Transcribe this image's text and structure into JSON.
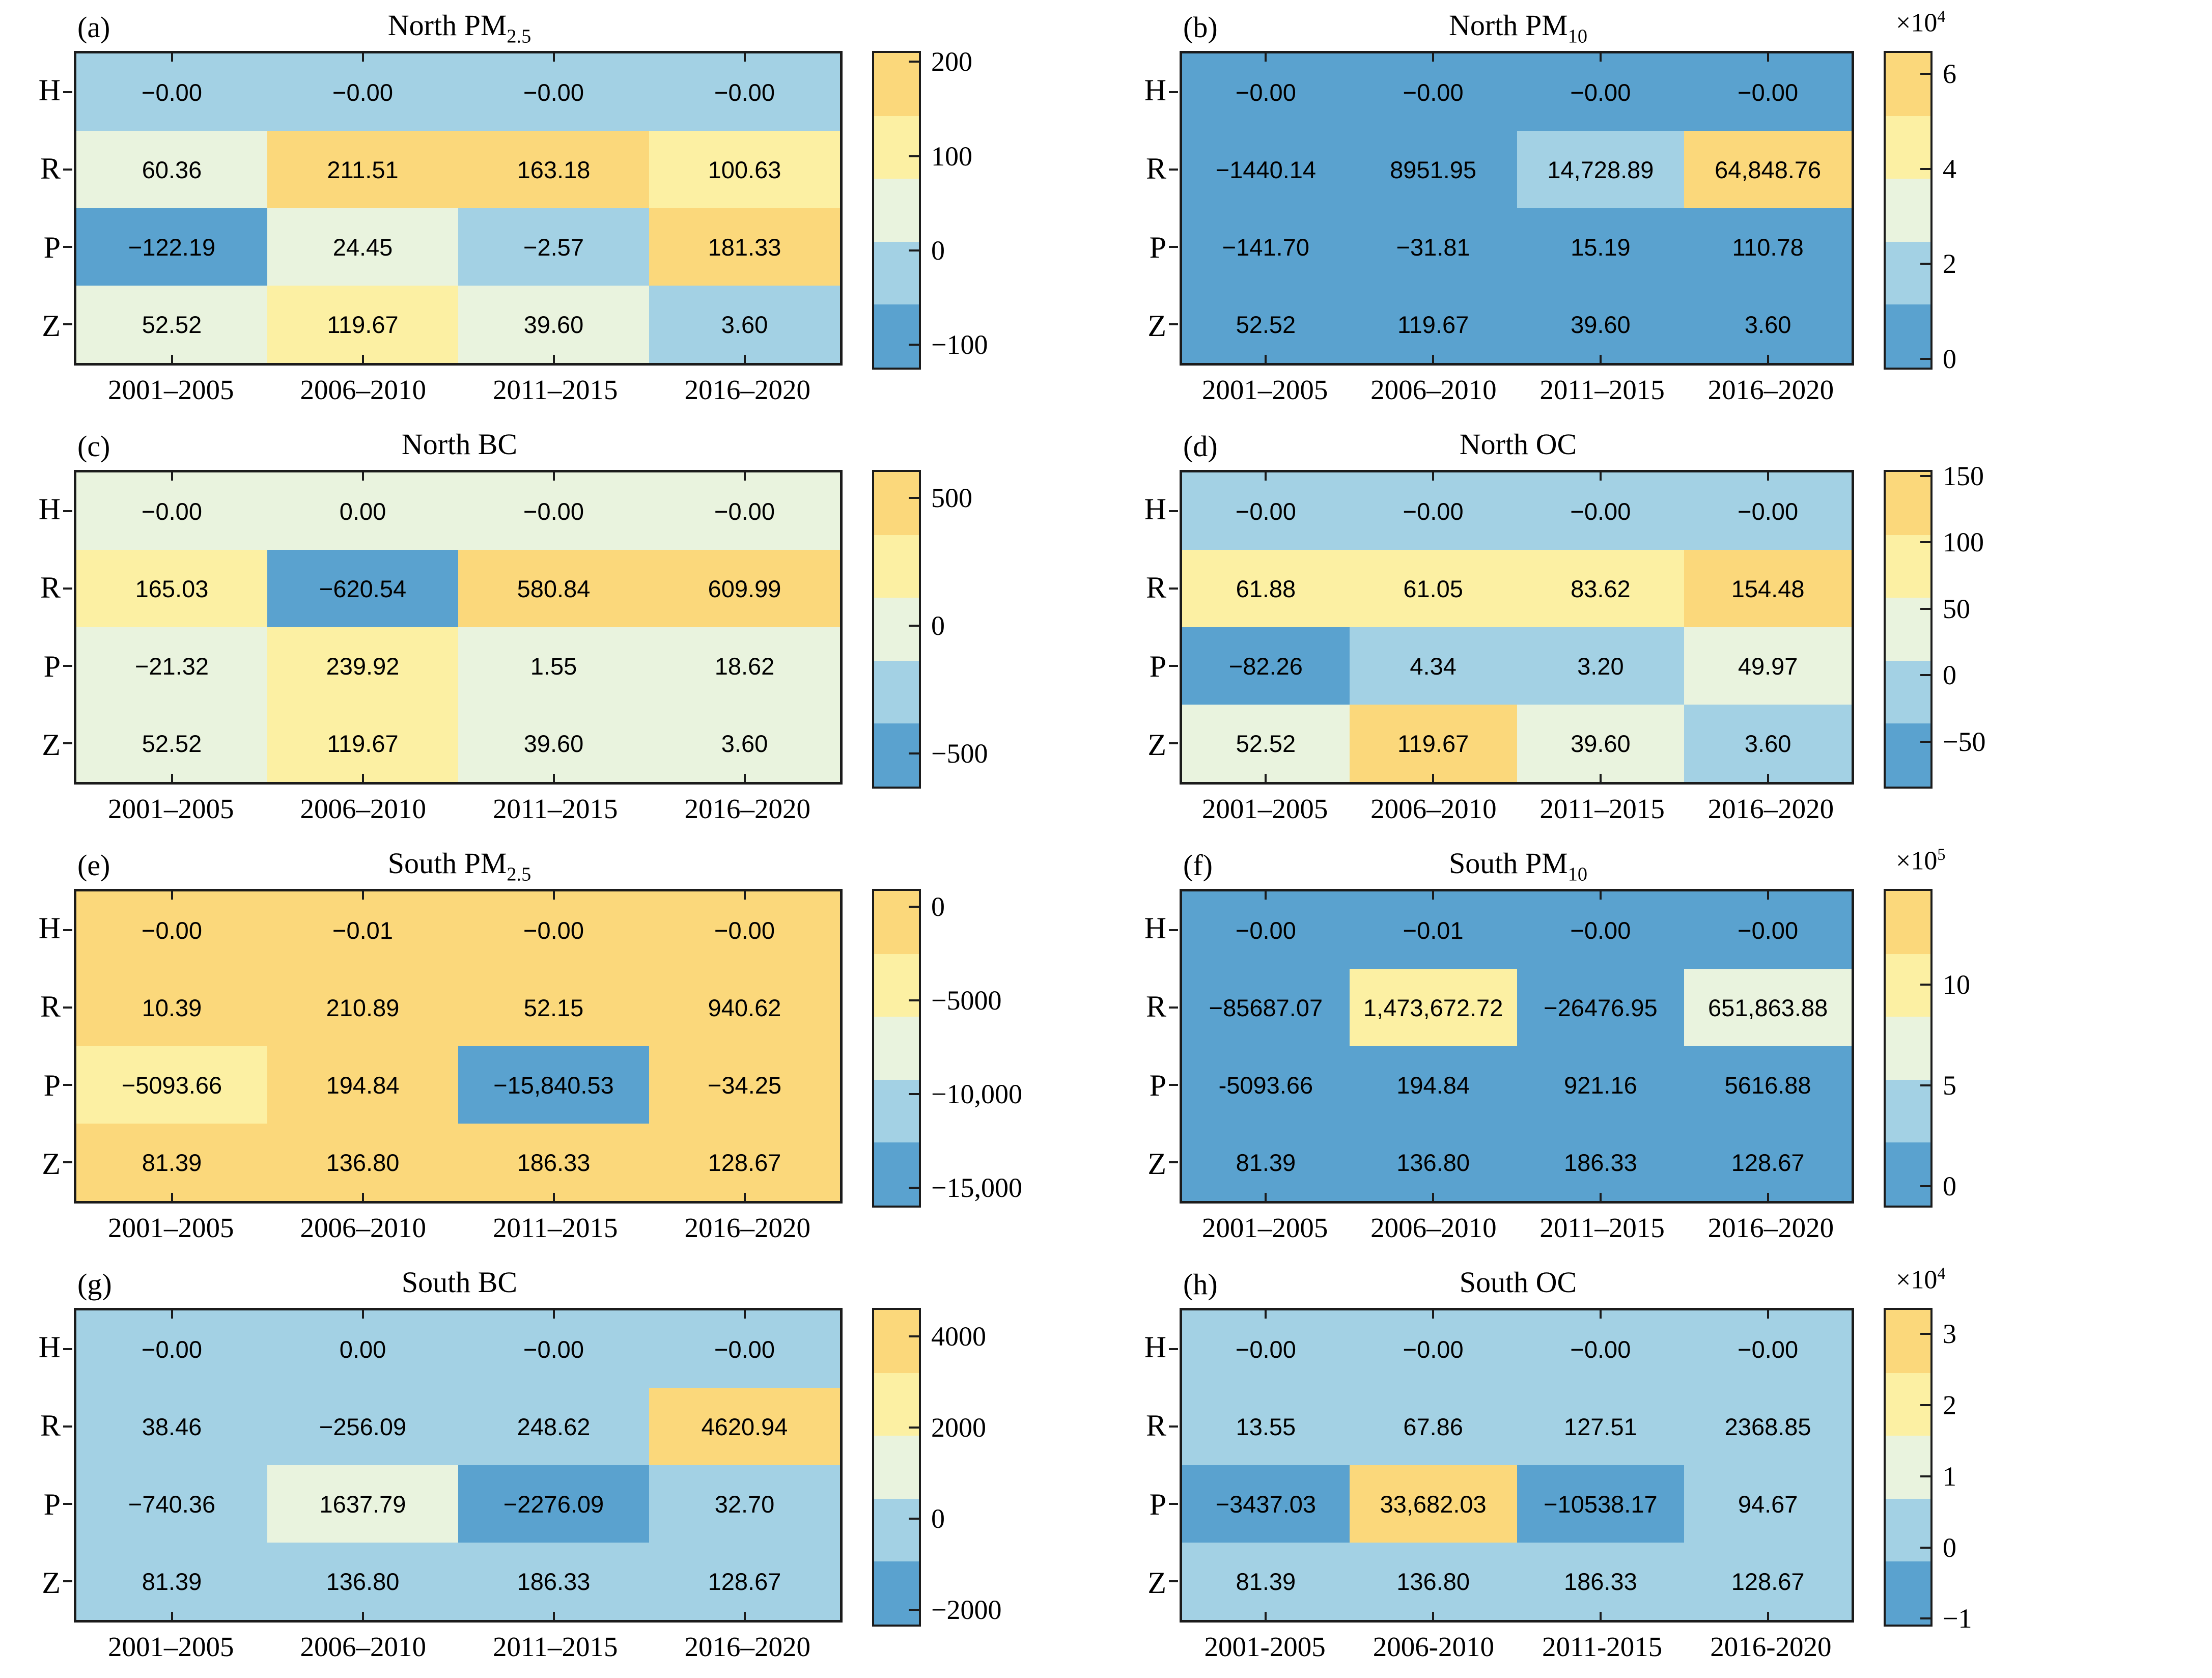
{
  "chart_data": {
    "type": "heatmap",
    "layout": "2x4 panel grid, each panel a 4x4 annotated heatmap with discrete 5-color colorbar",
    "rows": [
      "H",
      "R",
      "P",
      "Z"
    ],
    "palette": [
      "#5aa2cf",
      "#a3d1e4",
      "#e9f3de",
      "#fcf0a3",
      "#fbd87b"
    ],
    "border_color": "#1b1b1b",
    "text_color": "#000000",
    "panels": [
      {
        "id": "a",
        "tag": "(a)",
        "title": "North PM",
        "title_sub": "2.5",
        "columns": [
          "2001–2005",
          "2006–2010",
          "2011–2015",
          "2016–2020"
        ],
        "values": [
          [
            "−0.00",
            "−0.00",
            "−0.00",
            "−0.00"
          ],
          [
            "60.36",
            "211.51",
            "163.18",
            "100.63"
          ],
          [
            "−122.19",
            "24.45",
            "−2.57",
            "181.33"
          ],
          [
            "52.52",
            "119.67",
            "39.60",
            "3.60"
          ]
        ],
        "values_num": [
          [
            -0.0,
            -0.0,
            -0.0,
            -0.0
          ],
          [
            60.36,
            211.51,
            163.18,
            100.63
          ],
          [
            -122.19,
            24.45,
            -2.57,
            181.33
          ],
          [
            52.52,
            119.67,
            39.6,
            3.6
          ]
        ],
        "bands": [
          [
            1,
            1,
            1,
            1
          ],
          [
            2,
            4,
            4,
            3
          ],
          [
            0,
            2,
            1,
            4
          ],
          [
            2,
            3,
            2,
            1
          ]
        ],
        "caxis": {
          "min": -122.19,
          "max": 211.51
        },
        "colorbar": {
          "exp_base": "",
          "exp_sup": "",
          "ticks": [
            {
              "label": "200",
              "value": 200
            },
            {
              "label": "100",
              "value": 100
            },
            {
              "label": "0",
              "value": 0
            },
            {
              "label": "−100",
              "value": -100
            }
          ]
        }
      },
      {
        "id": "b",
        "tag": "(b)",
        "title": "North PM",
        "title_sub": "10",
        "columns": [
          "2001–2005",
          "2006–2010",
          "2011–2015",
          "2016–2020"
        ],
        "values": [
          [
            "−0.00",
            "−0.00",
            "−0.00",
            "−0.00"
          ],
          [
            "−1440.14",
            "8951.95",
            "14,728.89",
            "64,848.76"
          ],
          [
            "−141.70",
            "−31.81",
            "15.19",
            "110.78"
          ],
          [
            "52.52",
            "119.67",
            "39.60",
            "3.60"
          ]
        ],
        "values_num": [
          [
            -0.0,
            -0.0,
            -0.0,
            -0.0
          ],
          [
            -1440.14,
            8951.95,
            14728.89,
            64848.76
          ],
          [
            -141.7,
            -31.81,
            15.19,
            110.78
          ],
          [
            52.52,
            119.67,
            39.6,
            3.6
          ]
        ],
        "bands": [
          [
            0,
            0,
            0,
            0
          ],
          [
            0,
            0,
            1,
            4
          ],
          [
            0,
            0,
            0,
            0
          ],
          [
            0,
            0,
            0,
            0
          ]
        ],
        "caxis": {
          "min": -1440.14,
          "max": 64848.76
        },
        "colorbar": {
          "exp_base": "×10",
          "exp_sup": "4",
          "ticks": [
            {
              "label": "6",
              "value": 60000
            },
            {
              "label": "4",
              "value": 40000
            },
            {
              "label": "2",
              "value": 20000
            },
            {
              "label": "0",
              "value": 0
            }
          ]
        }
      },
      {
        "id": "c",
        "tag": "(c)",
        "title": "North BC",
        "title_sub": "",
        "columns": [
          "2001–2005",
          "2006–2010",
          "2011–2015",
          "2016–2020"
        ],
        "values": [
          [
            "−0.00",
            "0.00",
            "−0.00",
            "−0.00"
          ],
          [
            "165.03",
            "−620.54",
            "580.84",
            "609.99"
          ],
          [
            "−21.32",
            "239.92",
            "1.55",
            "18.62"
          ],
          [
            "52.52",
            "119.67",
            "39.60",
            "3.60"
          ]
        ],
        "values_num": [
          [
            -0.0,
            0.0,
            -0.0,
            -0.0
          ],
          [
            165.03,
            -620.54,
            580.84,
            609.99
          ],
          [
            -21.32,
            239.92,
            1.55,
            18.62
          ],
          [
            52.52,
            119.67,
            39.6,
            3.6
          ]
        ],
        "bands": [
          [
            2,
            2,
            2,
            2
          ],
          [
            3,
            0,
            4,
            4
          ],
          [
            2,
            3,
            2,
            2
          ],
          [
            2,
            3,
            2,
            2
          ]
        ],
        "caxis": {
          "min": -620.54,
          "max": 609.99
        },
        "colorbar": {
          "exp_base": "",
          "exp_sup": "",
          "ticks": [
            {
              "label": "500",
              "value": 500
            },
            {
              "label": "0",
              "value": 0
            },
            {
              "label": "−500",
              "value": -500
            }
          ]
        }
      },
      {
        "id": "d",
        "tag": "(d)",
        "title": "North OC",
        "title_sub": "",
        "columns": [
          "2001–2005",
          "2006–2010",
          "2011–2015",
          "2016–2020"
        ],
        "values": [
          [
            "−0.00",
            "−0.00",
            "−0.00",
            "−0.00"
          ],
          [
            "61.88",
            "61.05",
            "83.62",
            "154.48"
          ],
          [
            "−82.26",
            "4.34",
            "3.20",
            "49.97"
          ],
          [
            "52.52",
            "119.67",
            "39.60",
            "3.60"
          ]
        ],
        "values_num": [
          [
            -0.0,
            -0.0,
            -0.0,
            -0.0
          ],
          [
            61.88,
            61.05,
            83.62,
            154.48
          ],
          [
            -82.26,
            4.34,
            3.2,
            49.97
          ],
          [
            52.52,
            119.67,
            39.6,
            3.6
          ]
        ],
        "bands": [
          [
            1,
            1,
            1,
            1
          ],
          [
            3,
            3,
            3,
            4
          ],
          [
            0,
            1,
            1,
            2
          ],
          [
            2,
            4,
            2,
            1
          ]
        ],
        "caxis": {
          "min": -82.26,
          "max": 154.48
        },
        "colorbar": {
          "exp_base": "",
          "exp_sup": "",
          "ticks": [
            {
              "label": "150",
              "value": 150
            },
            {
              "label": "100",
              "value": 100
            },
            {
              "label": "50",
              "value": 50
            },
            {
              "label": "0",
              "value": 0
            },
            {
              "label": "−50",
              "value": -50
            }
          ]
        }
      },
      {
        "id": "e",
        "tag": "(e)",
        "title": "South PM",
        "title_sub": "2.5",
        "columns": [
          "2001–2005",
          "2006–2010",
          "2011–2015",
          "2016–2020"
        ],
        "values": [
          [
            "−0.00",
            "−0.01",
            "−0.00",
            "−0.00"
          ],
          [
            "10.39",
            "210.89",
            "52.15",
            "940.62"
          ],
          [
            "−5093.66",
            "194.84",
            "−15,840.53",
            "−34.25"
          ],
          [
            "81.39",
            "136.80",
            "186.33",
            "128.67"
          ]
        ],
        "values_num": [
          [
            -0.0,
            -0.01,
            -0.0,
            -0.0
          ],
          [
            10.39,
            210.89,
            52.15,
            940.62
          ],
          [
            -5093.66,
            194.84,
            -15840.53,
            -34.25
          ],
          [
            81.39,
            136.8,
            186.33,
            128.67
          ]
        ],
        "bands": [
          [
            4,
            4,
            4,
            4
          ],
          [
            4,
            4,
            4,
            4
          ],
          [
            3,
            4,
            0,
            4
          ],
          [
            4,
            4,
            4,
            4
          ]
        ],
        "caxis": {
          "min": -15840.53,
          "max": 940.62
        },
        "colorbar": {
          "exp_base": "",
          "exp_sup": "",
          "ticks": [
            {
              "label": "0",
              "value": 0
            },
            {
              "label": "−5000",
              "value": -5000
            },
            {
              "label": "−10,000",
              "value": -10000
            },
            {
              "label": "−15,000",
              "value": -15000
            }
          ]
        }
      },
      {
        "id": "f",
        "tag": "(f)",
        "title": "South PM",
        "title_sub": "10",
        "columns": [
          "2001–2005",
          "2006–2010",
          "2011–2015",
          "2016–2020"
        ],
        "values": [
          [
            "−0.00",
            "−0.01",
            "−0.00",
            "−0.00"
          ],
          [
            "−85687.07",
            "1,473,672.72",
            "−26476.95",
            "651,863.88"
          ],
          [
            "-5093.66",
            "194.84",
            "921.16",
            "5616.88"
          ],
          [
            "81.39",
            "136.80",
            "186.33",
            "128.67"
          ]
        ],
        "values_num": [
          [
            -0.0,
            -0.01,
            -0.0,
            -0.0
          ],
          [
            -85687.07,
            1473672.72,
            -26476.95,
            651863.88
          ],
          [
            -5093.66,
            194.84,
            921.16,
            5616.88
          ],
          [
            81.39,
            136.8,
            186.33,
            128.67
          ]
        ],
        "bands": [
          [
            0,
            0,
            0,
            0
          ],
          [
            0,
            3,
            0,
            2
          ],
          [
            0,
            0,
            0,
            0
          ],
          [
            0,
            0,
            0,
            0
          ]
        ],
        "caxis": {
          "min": -85687.07,
          "max": 1473672.72
        },
        "colorbar": {
          "exp_base": "×10",
          "exp_sup": "5",
          "ticks": [
            {
              "label": "10",
              "value": 1000000
            },
            {
              "label": "5",
              "value": 500000
            },
            {
              "label": "0",
              "value": 0
            }
          ]
        }
      },
      {
        "id": "g",
        "tag": "(g)",
        "title": "South BC",
        "title_sub": "",
        "columns": [
          "2001–2005",
          "2006–2010",
          "2011–2015",
          "2016–2020"
        ],
        "values": [
          [
            "−0.00",
            "0.00",
            "−0.00",
            "−0.00"
          ],
          [
            "38.46",
            "−256.09",
            "248.62",
            "4620.94"
          ],
          [
            "−740.36",
            "1637.79",
            "−2276.09",
            "32.70"
          ],
          [
            "81.39",
            "136.80",
            "186.33",
            "128.67"
          ]
        ],
        "values_num": [
          [
            -0.0,
            0.0,
            -0.0,
            -0.0
          ],
          [
            38.46,
            -256.09,
            248.62,
            4620.94
          ],
          [
            -740.36,
            1637.79,
            -2276.09,
            32.7
          ],
          [
            81.39,
            136.8,
            186.33,
            128.67
          ]
        ],
        "bands": [
          [
            1,
            1,
            1,
            1
          ],
          [
            1,
            1,
            1,
            4
          ],
          [
            1,
            2,
            0,
            1
          ],
          [
            1,
            1,
            1,
            1
          ]
        ],
        "caxis": {
          "min": -2276.09,
          "max": 4620.94
        },
        "colorbar": {
          "exp_base": "",
          "exp_sup": "",
          "ticks": [
            {
              "label": "4000",
              "value": 4000
            },
            {
              "label": "2000",
              "value": 2000
            },
            {
              "label": "0",
              "value": 0
            },
            {
              "label": "−2000",
              "value": -2000
            }
          ]
        }
      },
      {
        "id": "h",
        "tag": "(h)",
        "title": "South OC",
        "title_sub": "",
        "columns": [
          "2001-2005",
          "2006-2010",
          "2011-2015",
          "2016-2020"
        ],
        "values": [
          [
            "−0.00",
            "−0.00",
            "−0.00",
            "−0.00"
          ],
          [
            "13.55",
            "67.86",
            "127.51",
            "2368.85"
          ],
          [
            "−3437.03",
            "33,682.03",
            "−10538.17",
            "94.67"
          ],
          [
            "81.39",
            "136.80",
            "186.33",
            "128.67"
          ]
        ],
        "values_num": [
          [
            -0.0,
            -0.0,
            -0.0,
            -0.0
          ],
          [
            13.55,
            67.86,
            127.51,
            2368.85
          ],
          [
            -3437.03,
            33682.03,
            -10538.17,
            94.67
          ],
          [
            81.39,
            136.8,
            186.33,
            128.67
          ]
        ],
        "bands": [
          [
            1,
            1,
            1,
            1
          ],
          [
            1,
            1,
            1,
            1
          ],
          [
            0,
            4,
            0,
            1
          ],
          [
            1,
            1,
            1,
            1
          ]
        ],
        "caxis": {
          "min": -10538.17,
          "max": 33682.03
        },
        "colorbar": {
          "exp_base": "×10",
          "exp_sup": "4",
          "ticks": [
            {
              "label": "3",
              "value": 30000
            },
            {
              "label": "2",
              "value": 20000
            },
            {
              "label": "1",
              "value": 10000
            },
            {
              "label": "0",
              "value": 0
            },
            {
              "label": "−1",
              "value": -10000
            }
          ]
        }
      }
    ]
  }
}
